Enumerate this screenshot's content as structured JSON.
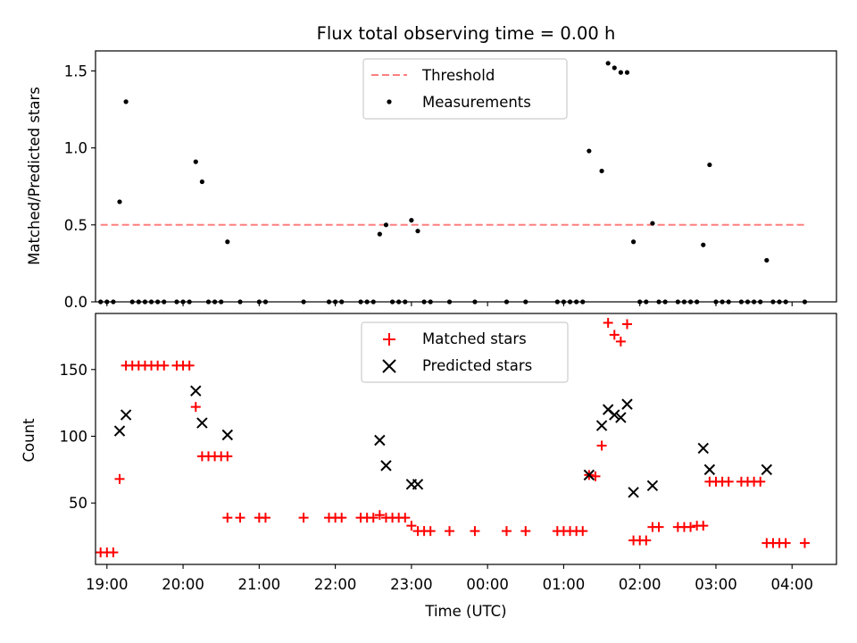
{
  "chart_data": [
    {
      "type": "scatter",
      "title": "Flux total observing time = 0.00 h",
      "ylabel": "Matched/Predicted stars",
      "xlabel": "",
      "x_tick_labels": [
        "19:00",
        "20:00",
        "21:00",
        "22:00",
        "23:00",
        "00:00",
        "01:00",
        "02:00",
        "03:00",
        "04:00"
      ],
      "y_ticks": [
        "0.0",
        "0.5",
        "1.0",
        "1.5"
      ],
      "ylim": [
        0,
        1.63
      ],
      "xlim": [
        "18:51",
        "04:35"
      ],
      "legend": {
        "placement": "top-center",
        "entries": [
          "Threshold",
          "Measurements"
        ]
      },
      "threshold": {
        "value": 0.5,
        "x_start": "18:55",
        "x_end": "04:10",
        "color": "#ff7f7f",
        "style": "dashed"
      },
      "series": [
        {
          "name": "Measurements",
          "color": "#000000",
          "marker": "dot",
          "points": [
            [
              "18:55",
              0
            ],
            [
              "19:00",
              0
            ],
            [
              "19:05",
              0
            ],
            [
              "19:10",
              0.65
            ],
            [
              "19:15",
              1.3
            ],
            [
              "19:20",
              0
            ],
            [
              "19:25",
              0
            ],
            [
              "19:30",
              0
            ],
            [
              "19:35",
              0
            ],
            [
              "19:40",
              0
            ],
            [
              "19:45",
              0
            ],
            [
              "19:55",
              0
            ],
            [
              "20:00",
              0
            ],
            [
              "20:05",
              0
            ],
            [
              "20:10",
              0.91
            ],
            [
              "20:15",
              0.78
            ],
            [
              "20:20",
              0
            ],
            [
              "20:25",
              0
            ],
            [
              "20:30",
              0
            ],
            [
              "20:35",
              0.39
            ],
            [
              "20:45",
              0
            ],
            [
              "21:00",
              0
            ],
            [
              "21:05",
              0
            ],
            [
              "21:35",
              0
            ],
            [
              "21:55",
              0
            ],
            [
              "22:00",
              0
            ],
            [
              "22:05",
              0
            ],
            [
              "22:20",
              0
            ],
            [
              "22:25",
              0
            ],
            [
              "22:30",
              0
            ],
            [
              "22:35",
              0.44
            ],
            [
              "22:40",
              0.5
            ],
            [
              "22:45",
              0
            ],
            [
              "22:50",
              0
            ],
            [
              "22:55",
              0
            ],
            [
              "23:00",
              0.53
            ],
            [
              "23:05",
              0.46
            ],
            [
              "23:10",
              0
            ],
            [
              "23:15",
              0
            ],
            [
              "23:30",
              0
            ],
            [
              "23:50",
              0
            ],
            [
              "00:15",
              0
            ],
            [
              "00:30",
              0
            ],
            [
              "00:55",
              0
            ],
            [
              "01:00",
              0
            ],
            [
              "01:05",
              0
            ],
            [
              "01:10",
              0
            ],
            [
              "01:15",
              0
            ],
            [
              "01:20",
              0.98
            ],
            [
              "01:30",
              0.85
            ],
            [
              "01:35",
              1.55
            ],
            [
              "01:40",
              1.52
            ],
            [
              "01:45",
              1.49
            ],
            [
              "01:50",
              1.49
            ],
            [
              "01:55",
              0.39
            ],
            [
              "02:00",
              0
            ],
            [
              "02:05",
              0
            ],
            [
              "02:10",
              0.51
            ],
            [
              "02:15",
              0
            ],
            [
              "02:20",
              0
            ],
            [
              "02:30",
              0
            ],
            [
              "02:35",
              0
            ],
            [
              "02:40",
              0
            ],
            [
              "02:45",
              0
            ],
            [
              "02:50",
              0.37
            ],
            [
              "02:55",
              0.89
            ],
            [
              "03:00",
              0
            ],
            [
              "03:05",
              0
            ],
            [
              "03:10",
              0
            ],
            [
              "03:20",
              0
            ],
            [
              "03:25",
              0
            ],
            [
              "03:30",
              0
            ],
            [
              "03:35",
              0
            ],
            [
              "03:40",
              0.27
            ],
            [
              "03:45",
              0
            ],
            [
              "03:50",
              0
            ],
            [
              "03:55",
              0
            ],
            [
              "04:10",
              0
            ]
          ]
        }
      ]
    },
    {
      "type": "scatter",
      "title": "",
      "xlabel": "Time (UTC)",
      "ylabel": "Count",
      "x_tick_labels": [
        "19:00",
        "20:00",
        "21:00",
        "22:00",
        "23:00",
        "00:00",
        "01:00",
        "02:00",
        "03:00",
        "04:00"
      ],
      "y_ticks": [
        "50",
        "100",
        "150"
      ],
      "ylim": [
        4,
        192
      ],
      "xlim": [
        "18:51",
        "04:35"
      ],
      "legend": {
        "placement": "top-center",
        "entries": [
          "Matched stars",
          "Predicted stars"
        ]
      },
      "series": [
        {
          "name": "Matched stars",
          "color": "#ff0000",
          "marker": "plus",
          "points": [
            [
              "18:55",
              13
            ],
            [
              "19:00",
              13
            ],
            [
              "19:05",
              13
            ],
            [
              "19:10",
              68
            ],
            [
              "19:15",
              153
            ],
            [
              "19:20",
              153
            ],
            [
              "19:25",
              153
            ],
            [
              "19:30",
              153
            ],
            [
              "19:35",
              153
            ],
            [
              "19:40",
              153
            ],
            [
              "19:45",
              153
            ],
            [
              "19:55",
              153
            ],
            [
              "20:00",
              153
            ],
            [
              "20:05",
              153
            ],
            [
              "20:10",
              122
            ],
            [
              "20:15",
              85
            ],
            [
              "20:20",
              85
            ],
            [
              "20:25",
              85
            ],
            [
              "20:30",
              85
            ],
            [
              "20:35",
              85
            ],
            [
              "20:35",
              39
            ],
            [
              "20:45",
              39
            ],
            [
              "21:00",
              39
            ],
            [
              "21:05",
              39
            ],
            [
              "21:35",
              39
            ],
            [
              "21:55",
              39
            ],
            [
              "22:00",
              39
            ],
            [
              "22:05",
              39
            ],
            [
              "22:20",
              39
            ],
            [
              "22:25",
              39
            ],
            [
              "22:30",
              39
            ],
            [
              "22:35",
              41
            ],
            [
              "22:40",
              39
            ],
            [
              "22:45",
              39
            ],
            [
              "22:50",
              39
            ],
            [
              "22:55",
              39
            ],
            [
              "23:00",
              33
            ],
            [
              "23:05",
              29
            ],
            [
              "23:10",
              29
            ],
            [
              "23:15",
              29
            ],
            [
              "23:30",
              29
            ],
            [
              "23:50",
              29
            ],
            [
              "00:15",
              29
            ],
            [
              "00:30",
              29
            ],
            [
              "00:55",
              29
            ],
            [
              "01:00",
              29
            ],
            [
              "01:05",
              29
            ],
            [
              "01:10",
              29
            ],
            [
              "01:15",
              29
            ],
            [
              "01:20",
              71
            ],
            [
              "01:25",
              70
            ],
            [
              "01:30",
              93
            ],
            [
              "01:35",
              185
            ],
            [
              "01:40",
              176
            ],
            [
              "01:45",
              171
            ],
            [
              "01:50",
              184
            ],
            [
              "01:55",
              22
            ],
            [
              "02:00",
              22
            ],
            [
              "02:05",
              22
            ],
            [
              "02:10",
              32
            ],
            [
              "02:15",
              32
            ],
            [
              "02:30",
              32
            ],
            [
              "02:35",
              32
            ],
            [
              "02:40",
              32
            ],
            [
              "02:45",
              33
            ],
            [
              "02:50",
              33
            ],
            [
              "02:55",
              66
            ],
            [
              "03:00",
              66
            ],
            [
              "03:05",
              66
            ],
            [
              "03:10",
              66
            ],
            [
              "03:20",
              66
            ],
            [
              "03:25",
              66
            ],
            [
              "03:30",
              66
            ],
            [
              "03:35",
              66
            ],
            [
              "03:40",
              20
            ],
            [
              "03:45",
              20
            ],
            [
              "03:50",
              20
            ],
            [
              "03:55",
              20
            ],
            [
              "04:10",
              20
            ]
          ]
        },
        {
          "name": "Predicted stars",
          "color": "#000000",
          "marker": "x",
          "points": [
            [
              "19:10",
              104
            ],
            [
              "19:15",
              116
            ],
            [
              "20:10",
              134
            ],
            [
              "20:15",
              110
            ],
            [
              "20:35",
              101
            ],
            [
              "22:35",
              97
            ],
            [
              "22:40",
              78
            ],
            [
              "23:00",
              64
            ],
            [
              "23:05",
              64
            ],
            [
              "01:20",
              71
            ],
            [
              "01:30",
              108
            ],
            [
              "01:35",
              120
            ],
            [
              "01:40",
              116
            ],
            [
              "01:45",
              114
            ],
            [
              "01:50",
              124
            ],
            [
              "01:55",
              58
            ],
            [
              "02:10",
              63
            ],
            [
              "02:50",
              91
            ],
            [
              "02:55",
              75
            ],
            [
              "03:40",
              75
            ]
          ]
        }
      ]
    }
  ]
}
